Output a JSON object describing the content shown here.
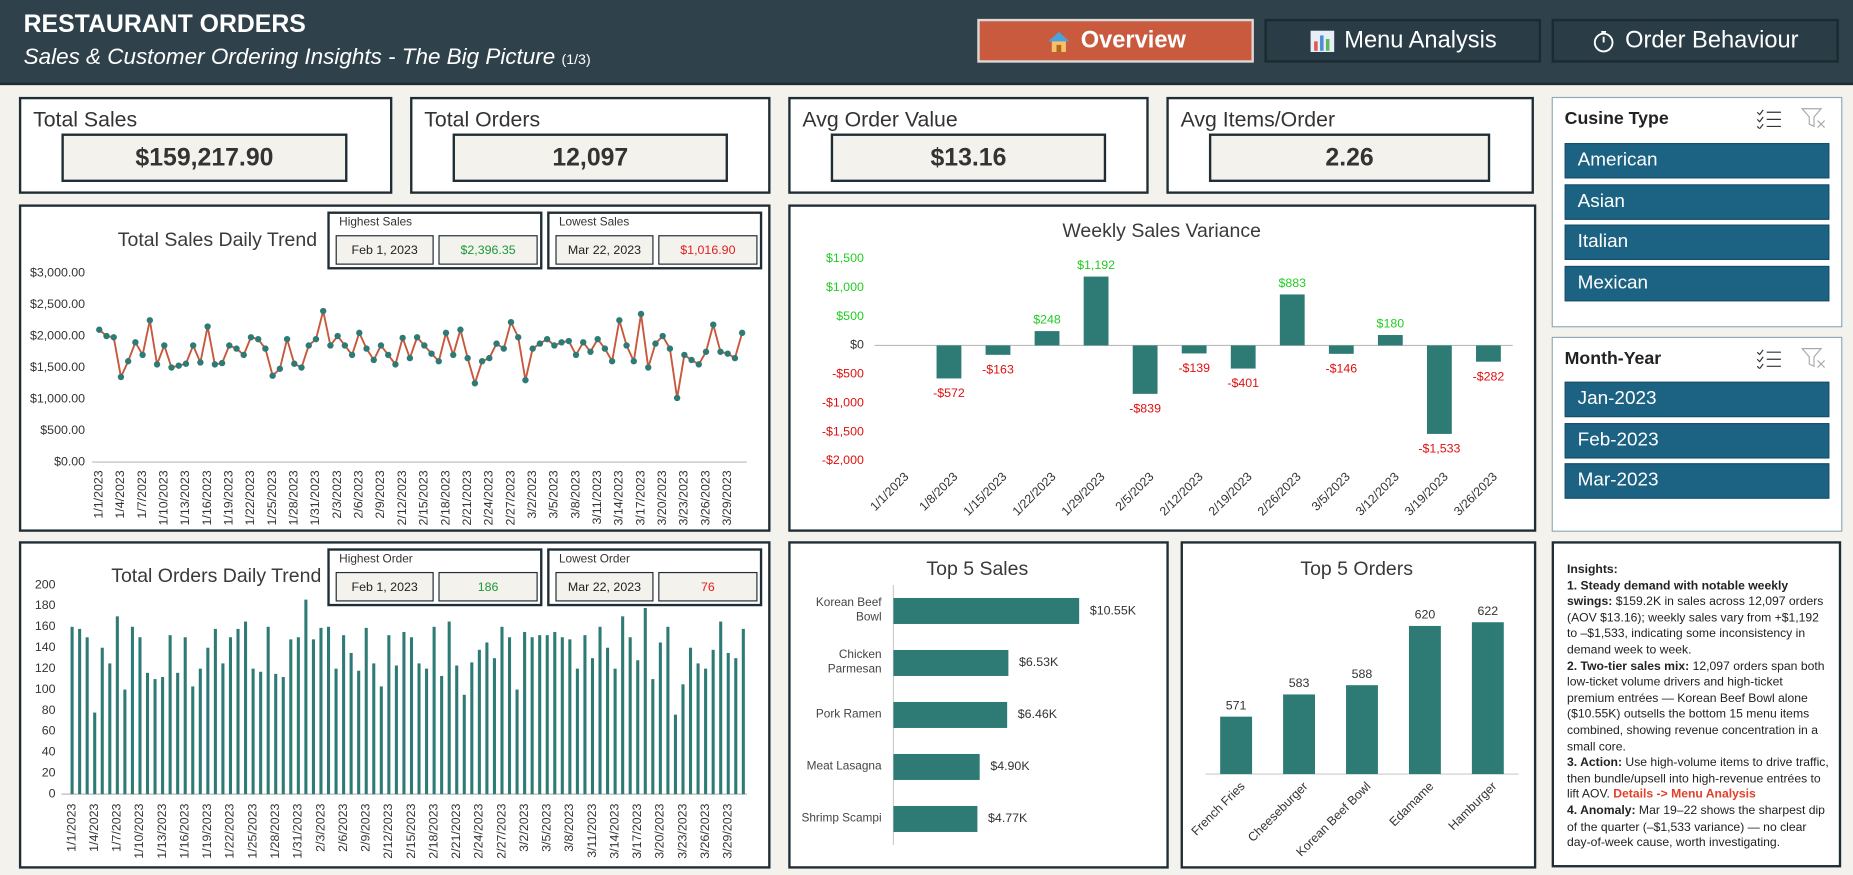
{
  "header": {
    "title": "RESTAURANT ORDERS",
    "subtitle": "Sales & Customer Ordering Insights - The Big Picture",
    "page": "(1/3)"
  },
  "nav": [
    "Overview",
    "Menu Analysis",
    "Order Behaviour"
  ],
  "kpis": [
    {
      "label": "Total Sales",
      "value": "$159,217.90"
    },
    {
      "label": "Total Orders",
      "value": "12,097"
    },
    {
      "label": "Avg Order Value",
      "value": "$13.16"
    },
    {
      "label": "Avg Items/Order",
      "value": "2.26"
    }
  ],
  "slicers": [
    {
      "title": "Cusine Type",
      "items": [
        "American",
        "Asian",
        "Italian",
        "Mexican"
      ]
    },
    {
      "title": "Month-Year",
      "items": [
        "Jan-2023",
        "Feb-2023",
        "Mar-2023"
      ]
    }
  ],
  "insights": {
    "title": "Insights:",
    "items": [
      {
        "lead": "1. Steady demand with notable weekly swings:",
        "text": "$159.2K in sales across 12,097 orders (AOV $13.16); weekly sales vary from +$1,192 to –$1,533, indicating some inconsistency in demand week to week."
      },
      {
        "lead": "2. Two-tier sales mix:",
        "text": "12,097 orders span both low-ticket volume drivers and high-ticket premium entrées — Korean Beef Bowl alone ($10.55K) outsells the bottom 15 menu items combined, showing revenue concentration in a small core."
      },
      {
        "lead": "3. Action:",
        "text": "Use high-volume items to drive traffic, then bundle/upsell into high-revenue entrées to lift AOV.",
        "link": "Details -> Menu Analysis"
      },
      {
        "lead": "4. Anomaly:",
        "text": "Mar 19–22 shows the sharpest dip of the quarter (–$1,533 variance) — no clear day-of-week cause, worth investigating."
      }
    ]
  },
  "chart_data": [
    {
      "type": "line",
      "title": "Total Sales Daily Trend",
      "color": "#c8583c",
      "marker_color": "#2e7b76",
      "categories": [
        "1/1/2023",
        null,
        null,
        "1/4/2023",
        null,
        null,
        "1/7/2023",
        null,
        null,
        "1/10/2023",
        null,
        null,
        "1/13/2023",
        null,
        null,
        "1/16/2023",
        null,
        null,
        "1/19/2023",
        null,
        null,
        "1/22/2023",
        null,
        null,
        "1/25/2023",
        null,
        null,
        "1/28/2023",
        null,
        null,
        "1/31/2023",
        null,
        null,
        "2/3/2023",
        null,
        null,
        "2/6/2023",
        null,
        null,
        "2/9/2023",
        null,
        null,
        "2/12/2023",
        null,
        null,
        "2/15/2023",
        null,
        null,
        "2/18/2023",
        null,
        null,
        "2/21/2023",
        null,
        null,
        "2/24/2023",
        null,
        null,
        "2/27/2023",
        null,
        null,
        "3/2/2023",
        null,
        null,
        "3/5/2023",
        null,
        null,
        "3/8/2023",
        null,
        null,
        "3/11/2023",
        null,
        null,
        "3/14/2023",
        null,
        null,
        "3/17/2023",
        null,
        null,
        "3/20/2023",
        null,
        null,
        "3/23/2023",
        null,
        null,
        "3/26/2023",
        null,
        null,
        "3/29/2023",
        null,
        null
      ],
      "values": [
        2100,
        2000,
        1980,
        1350,
        1600,
        1900,
        1700,
        2250,
        1550,
        1850,
        1500,
        1530,
        1560,
        1850,
        1580,
        2150,
        1550,
        1570,
        1850,
        1800,
        1700,
        1980,
        1950,
        1800,
        1370,
        1480,
        1950,
        1560,
        1500,
        1850,
        1950,
        2396.35,
        1850,
        2000,
        1850,
        1700,
        2050,
        1800,
        1620,
        1850,
        1700,
        1550,
        1970,
        1650,
        1980,
        1850,
        1720,
        1600,
        2050,
        1700,
        2100,
        1650,
        1250,
        1600,
        1650,
        1880,
        1800,
        2220,
        1980,
        1300,
        1800,
        1880,
        1950,
        1850,
        1900,
        1920,
        1700,
        1900,
        1750,
        1950,
        1800,
        1600,
        2250,
        1850,
        1600,
        2350,
        1500,
        1880,
        2000,
        1800,
        1016.9,
        1700,
        1620,
        1550,
        1750,
        2180,
        1750,
        1720,
        1650,
        2050
      ],
      "ylim": [
        0,
        3000
      ],
      "yticks": [
        {
          "value": 0,
          "label": "$0.00"
        },
        {
          "value": 500,
          "label": "$500.00"
        },
        {
          "value": 1000,
          "label": "$1,000.00"
        },
        {
          "value": 1500,
          "label": "$1,500.00"
        },
        {
          "value": 2000,
          "label": "$2,000.00"
        },
        {
          "value": 2500,
          "label": "$2,500.00"
        },
        {
          "value": 3000,
          "label": "$3,000.00"
        }
      ],
      "callouts": [
        {
          "label": "Highest Sales",
          "date": "Feb 1, 2023",
          "value": "$2,396.35",
          "color": "#1a9a3a"
        },
        {
          "label": "Lowest Sales",
          "date": "Mar 22, 2023",
          "value": "$1,016.90",
          "color": "#e02020"
        }
      ]
    },
    {
      "type": "bar",
      "title": "Total Orders Daily Trend",
      "color": "#2e7b76",
      "categories": [
        "1/1/2023",
        null,
        null,
        "1/4/2023",
        null,
        null,
        "1/7/2023",
        null,
        null,
        "1/10/2023",
        null,
        null,
        "1/13/2023",
        null,
        null,
        "1/16/2023",
        null,
        null,
        "1/19/2023",
        null,
        null,
        "1/22/2023",
        null,
        null,
        "1/25/2023",
        null,
        null,
        "1/28/2023",
        null,
        null,
        "1/31/2023",
        null,
        null,
        "2/3/2023",
        null,
        null,
        "2/6/2023",
        null,
        null,
        "2/9/2023",
        null,
        null,
        "2/12/2023",
        null,
        null,
        "2/15/2023",
        null,
        null,
        "2/18/2023",
        null,
        null,
        "2/21/2023",
        null,
        null,
        "2/24/2023",
        null,
        null,
        "2/27/2023",
        null,
        null,
        "3/2/2023",
        null,
        null,
        "3/5/2023",
        null,
        null,
        "3/8/2023",
        null,
        null,
        "3/11/2023",
        null,
        null,
        "3/14/2023",
        null,
        null,
        "3/17/2023",
        null,
        null,
        "3/20/2023",
        null,
        null,
        "3/23/2023",
        null,
        null,
        "3/26/2023",
        null,
        null,
        "3/29/2023",
        null,
        null
      ],
      "values": [
        160,
        158,
        150,
        78,
        140,
        125,
        170,
        100,
        160,
        150,
        116,
        110,
        112,
        152,
        116,
        150,
        103,
        120,
        140,
        158,
        125,
        150,
        158,
        165,
        120,
        117,
        160,
        115,
        112,
        148,
        150,
        186,
        148,
        159,
        160,
        120,
        152,
        135,
        118,
        159,
        125,
        103,
        152,
        123,
        155,
        150,
        125,
        120,
        160,
        113,
        165,
        123,
        95,
        126,
        138,
        145,
        130,
        160,
        150,
        100,
        155,
        150,
        152,
        152,
        155,
        150,
        148,
        120,
        152,
        130,
        160,
        140,
        120,
        170,
        150,
        128,
        178,
        110,
        145,
        160,
        76,
        105,
        140,
        125,
        120,
        138,
        165,
        135,
        130,
        158
      ],
      "ylim": [
        0,
        200
      ],
      "yticks": [
        0,
        20,
        40,
        60,
        80,
        100,
        120,
        140,
        160,
        180,
        200
      ],
      "callouts": [
        {
          "label": "Highest Order",
          "date": "Feb 1, 2023",
          "value": 186,
          "color": "#1a9a3a"
        },
        {
          "label": "Lowest Order",
          "date": "Mar 22, 2023",
          "value": 76,
          "color": "#e02020"
        }
      ]
    },
    {
      "type": "bar",
      "title": "Weekly Sales Variance",
      "color": "#2e7b76",
      "positive_color": "#22cc22",
      "negative_color": "#e01010",
      "categories": [
        "1/1/2023",
        "1/8/2023",
        "1/15/2023",
        "1/22/2023",
        "1/29/2023",
        "2/5/2023",
        "2/12/2023",
        "2/19/2023",
        "2/26/2023",
        "3/5/2023",
        "3/12/2023",
        "3/19/2023",
        "3/26/2023"
      ],
      "values": [
        null,
        -572,
        -163,
        248,
        1192,
        -839,
        -139,
        -401,
        883,
        -146,
        180,
        -1533,
        -282
      ],
      "value_labels": [
        null,
        "-$572",
        "-$163",
        "$248",
        "$1,192",
        "-$839",
        "-$139",
        "-$401",
        "$883",
        "-$146",
        "$180",
        "-$1,533",
        "-$282"
      ],
      "ylim": [
        -2000,
        1500
      ],
      "yticks": [
        {
          "value": -2000,
          "label": "-$2,000"
        },
        {
          "value": -1500,
          "label": "-$1,500"
        },
        {
          "value": -1000,
          "label": "-$1,000"
        },
        {
          "value": -500,
          "label": "-$500"
        },
        {
          "value": 0,
          "label": "$0"
        },
        {
          "value": 500,
          "label": "$500"
        },
        {
          "value": 1000,
          "label": "$1,000"
        },
        {
          "value": 1500,
          "label": "$1,500"
        }
      ]
    },
    {
      "type": "barh",
      "title": "Top 5 Sales",
      "color": "#2e7b76",
      "categories": [
        "Korean Beef Bowl",
        "Chicken Parmesan",
        "Pork Ramen",
        "Meat Lasagna",
        "Shrimp Scampi"
      ],
      "values": [
        10.55,
        6.53,
        6.46,
        4.9,
        4.77
      ],
      "value_labels": [
        "$10.55K",
        "$6.53K",
        "$6.46K",
        "$4.90K",
        "$4.77K"
      ],
      "xlim": [
        0,
        14
      ]
    },
    {
      "type": "bar",
      "title": "Top 5 Orders",
      "color": "#2e7b76",
      "data_labels": true,
      "categories": [
        "French Fries",
        "Cheeseburger",
        "Korean Beef Bowl",
        "Edamame",
        "Hamburger"
      ],
      "values": [
        571,
        583,
        588,
        620,
        622
      ],
      "ylim": [
        540,
        630
      ]
    }
  ]
}
